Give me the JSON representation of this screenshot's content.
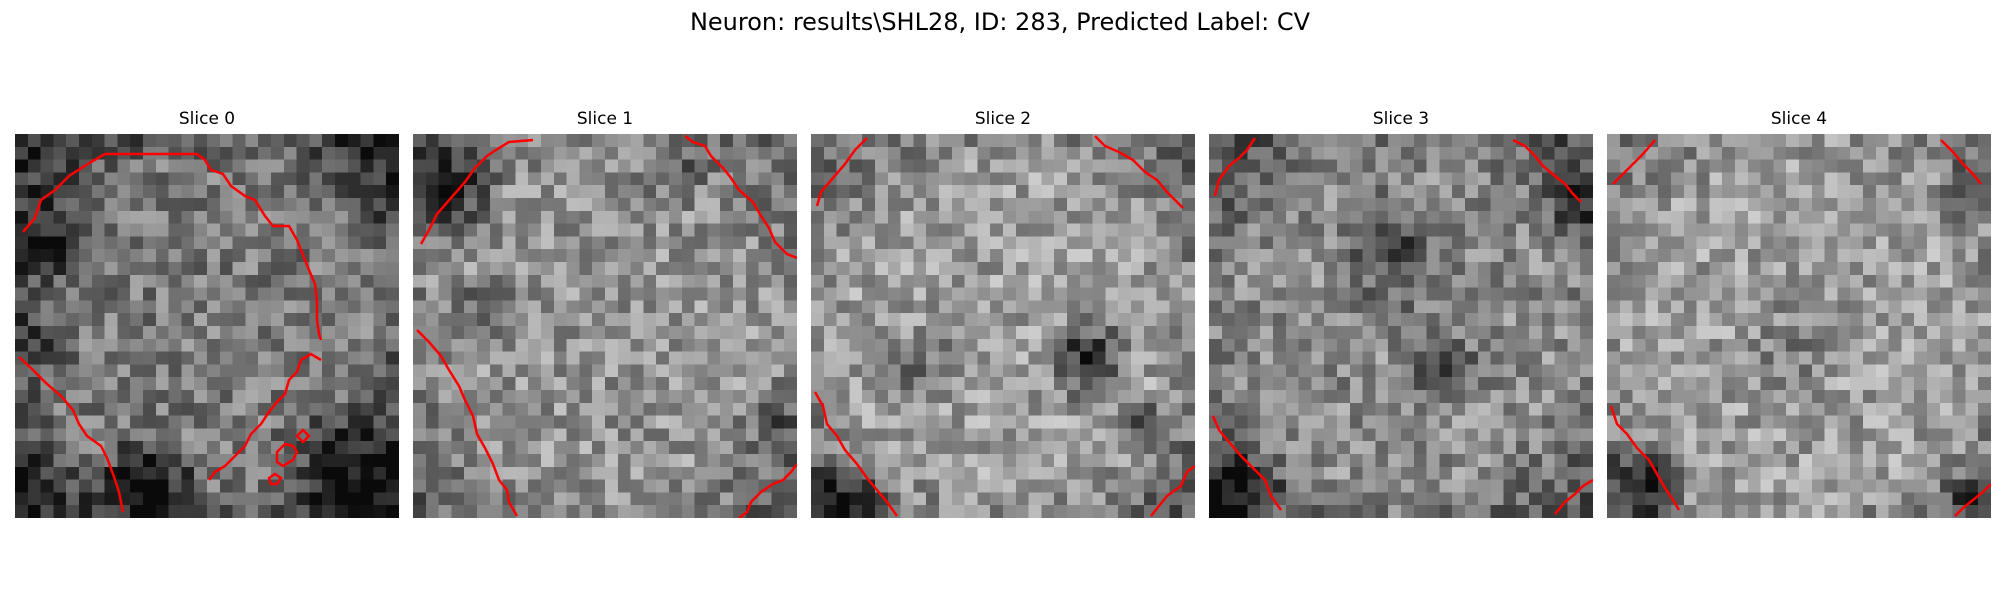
{
  "figure": {
    "title": "Neuron: results\\SHL28, ID: 283, Predicted Label: CV"
  },
  "colors": {
    "contour": "#ff0000",
    "background": "#ffffff"
  },
  "panels": [
    {
      "title": "Slice 0"
    },
    {
      "title": "Slice 1"
    },
    {
      "title": "Slice 2"
    },
    {
      "title": "Slice 3"
    },
    {
      "title": "Slice 4"
    }
  ]
}
